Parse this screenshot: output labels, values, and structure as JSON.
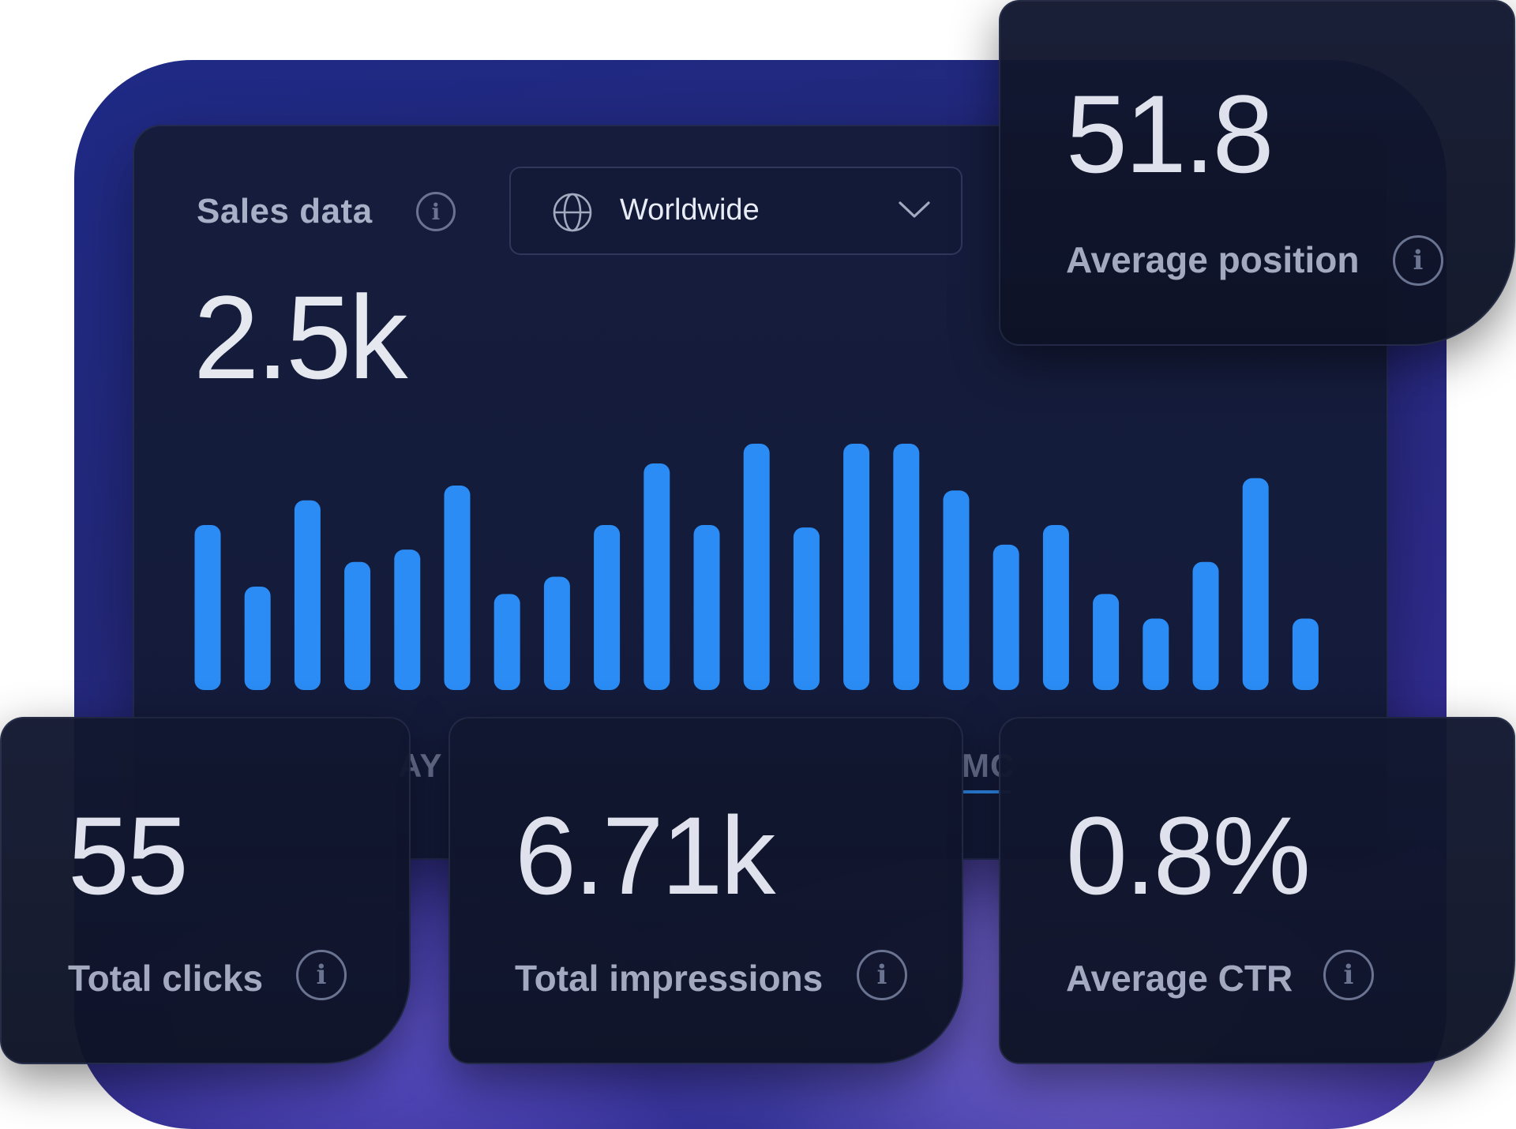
{
  "sales": {
    "title": "Sales data",
    "region": "Worldwide",
    "total": "2.5k"
  },
  "tabs": [
    {
      "label": "AY"
    },
    {
      "label": "MC"
    }
  ],
  "cards": {
    "average_position": {
      "value": "51.8",
      "label": "Average position"
    },
    "total_clicks": {
      "value": "55",
      "label": "Total clicks"
    },
    "total_impressions": {
      "value": "6.71k",
      "label": "Total impressions"
    },
    "average_ctr": {
      "value": "0.8%",
      "label": "Average CTR"
    }
  },
  "icons": {
    "info": "info-icon",
    "globe": "globe-icon",
    "dropdown": "chevron-down-icon"
  },
  "colors": {
    "bar": "#2a8cf4",
    "accent": "#2f8ef5"
  },
  "chart_data": {
    "type": "bar",
    "values": [
      67,
      42,
      77,
      52,
      57,
      83,
      39,
      46,
      67,
      92,
      67,
      100,
      66,
      100,
      100,
      81,
      59,
      67,
      39,
      29,
      52,
      86,
      29
    ],
    "ylim": [
      0,
      100
    ]
  }
}
